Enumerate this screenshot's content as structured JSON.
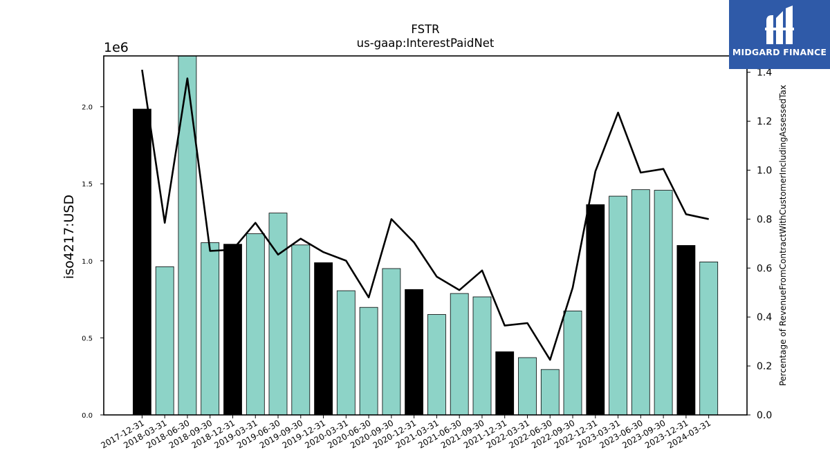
{
  "chart_data": {
    "type": "bar+line",
    "title": "FSTR",
    "subtitle": "us-gaap:InterestPaidNet",
    "ylabel_left": "iso4217:USD",
    "ylabel_right": "Percentage of RevenueFromContractWithCustomerIncludingAssessedTax",
    "offset_label": "1e6",
    "ylim_left": [
      0,
      2330000
    ],
    "ylim_right": [
      0,
      1.4667
    ],
    "left_ticks": [
      {
        "v": 0,
        "label": "0.0"
      },
      {
        "v": 500000,
        "label": "0.5"
      },
      {
        "v": 1000000,
        "label": "1.0"
      },
      {
        "v": 1500000,
        "label": "1.5"
      },
      {
        "v": 2000000,
        "label": "2.0"
      }
    ],
    "right_ticks": [
      {
        "v": 0,
        "label": "0.0"
      },
      {
        "v": 0.2,
        "label": "0.2"
      },
      {
        "v": 0.4,
        "label": "0.4"
      },
      {
        "v": 0.6,
        "label": "0.6"
      },
      {
        "v": 0.8,
        "label": "0.8"
      },
      {
        "v": 1.0,
        "label": "1.0"
      },
      {
        "v": 1.2,
        "label": "1.2"
      },
      {
        "v": 1.4,
        "label": "1.4"
      }
    ],
    "categories": [
      "2017-12-31",
      "2018-03-31",
      "2018-06-30",
      "2018-09-30",
      "2018-12-31",
      "2019-03-31",
      "2019-06-30",
      "2019-09-30",
      "2019-12-31",
      "2020-03-31",
      "2020-06-30",
      "2020-09-30",
      "2020-12-31",
      "2021-03-31",
      "2021-06-30",
      "2021-09-30",
      "2021-12-31",
      "2022-03-31",
      "2022-06-30",
      "2022-09-30",
      "2022-12-31",
      "2023-03-31",
      "2023-06-30",
      "2023-09-30",
      "2023-12-31",
      "2024-03-31"
    ],
    "bar_values": [
      1985000,
      962000,
      2340000,
      1118000,
      1108000,
      1176000,
      1310000,
      1103000,
      988000,
      806000,
      698000,
      950000,
      814000,
      652000,
      788000,
      766000,
      410000,
      372000,
      295000,
      675000,
      1365000,
      1420000,
      1462000,
      1458000,
      1100000,
      993000
    ],
    "bar_colors": [
      "#000000",
      "#8dd3c7",
      "#8dd3c7",
      "#8dd3c7",
      "#000000",
      "#8dd3c7",
      "#8dd3c7",
      "#8dd3c7",
      "#000000",
      "#8dd3c7",
      "#8dd3c7",
      "#8dd3c7",
      "#000000",
      "#8dd3c7",
      "#8dd3c7",
      "#8dd3c7",
      "#000000",
      "#8dd3c7",
      "#8dd3c7",
      "#8dd3c7",
      "#000000",
      "#8dd3c7",
      "#8dd3c7",
      "#8dd3c7",
      "#000000",
      "#8dd3c7"
    ],
    "line_values": [
      1.41,
      0.785,
      1.375,
      0.67,
      0.675,
      0.785,
      0.655,
      0.72,
      0.665,
      0.63,
      0.48,
      0.8,
      0.705,
      0.565,
      0.51,
      0.59,
      0.365,
      0.375,
      0.225,
      0.52,
      0.995,
      1.235,
      0.99,
      1.005,
      0.82,
      0.8
    ],
    "line_color": "#000000"
  },
  "logo": {
    "text": "MIDGARD FINANCE"
  }
}
